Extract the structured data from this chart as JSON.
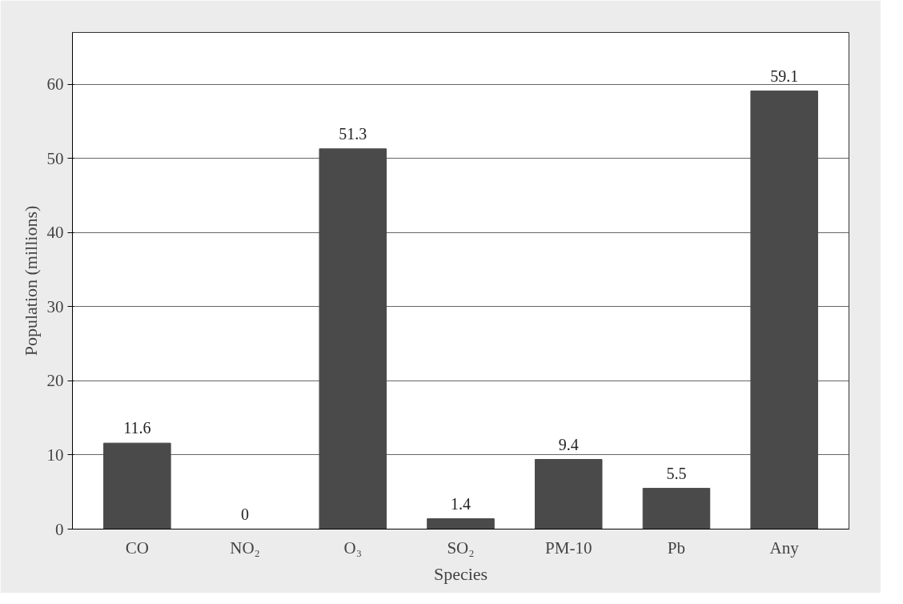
{
  "chart_data": {
    "type": "bar",
    "xlabel": "Species",
    "ylabel": "Population (millions)",
    "categories": [
      "CO",
      "NO₂",
      "O₃",
      "SO₂",
      "PM-10",
      "Pb",
      "Any"
    ],
    "values": [
      11.6,
      0,
      51.3,
      1.4,
      9.4,
      5.5,
      59.1
    ],
    "color": "#4a4a4a",
    "ylim": [
      0,
      67
    ],
    "yticks": [
      0,
      10,
      20,
      30,
      40,
      50,
      60
    ],
    "grid": "y",
    "data_labels": true
  }
}
